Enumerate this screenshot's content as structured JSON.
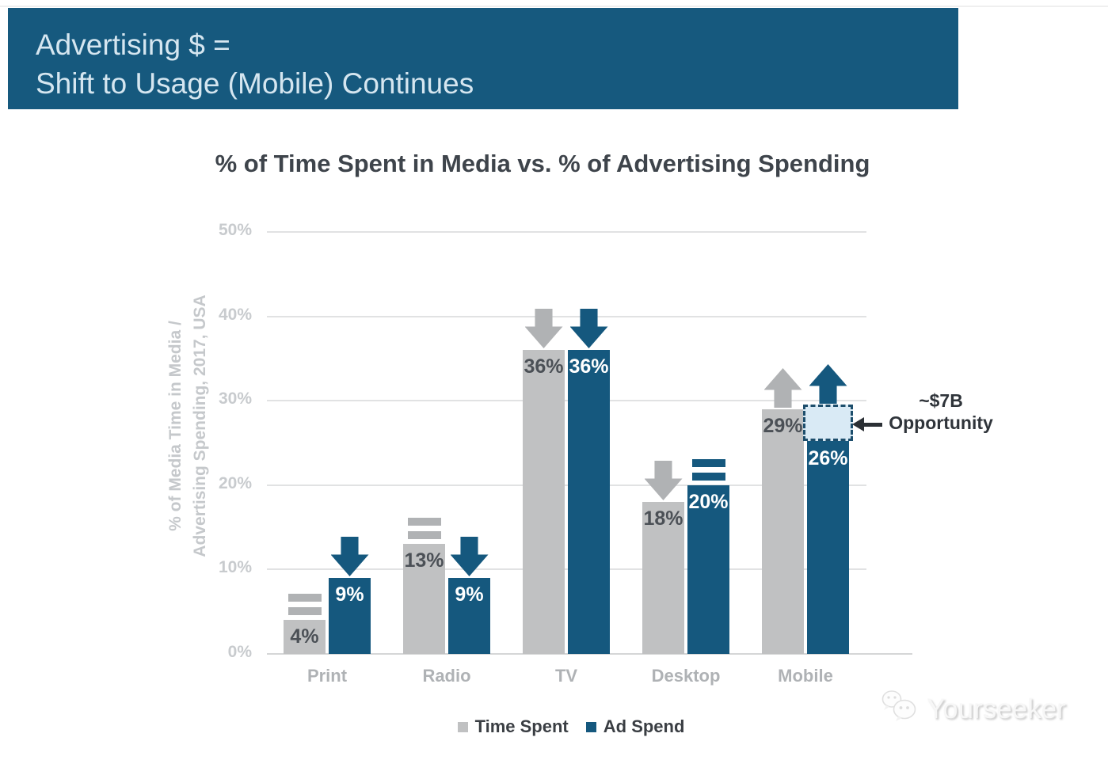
{
  "header": {
    "line1": "Advertising $ =",
    "line2": "Shift to Usage (Mobile) Continues"
  },
  "chart_data": {
    "type": "bar",
    "title": "% of Time Spent in Media vs. % of Advertising Spending",
    "ylabel_line1": "% of Media Time in Media /",
    "ylabel_line2": "Advertising Spending, 2017, USA",
    "categories": [
      "Print",
      "Radio",
      "TV",
      "Desktop",
      "Mobile"
    ],
    "series": [
      {
        "name": "Time Spent",
        "color": "#C0C1C2",
        "values": [
          4,
          13,
          36,
          18,
          29
        ],
        "indicators": [
          "equal",
          "equal",
          "down",
          "down",
          "up"
        ]
      },
      {
        "name": "Ad Spend",
        "color": "#15587E",
        "values": [
          9,
          9,
          36,
          20,
          26
        ],
        "indicators": [
          "down",
          "down",
          "down",
          "equal",
          "up"
        ]
      }
    ],
    "y_ticks": [
      "0%",
      "10%",
      "20%",
      "30%",
      "40%",
      "50%"
    ],
    "ylim": [
      0,
      50
    ],
    "grid": true,
    "legend_position": "bottom",
    "annotation": {
      "line1": "~$7B",
      "line2": "Opportunity",
      "target_category": "Mobile",
      "target_series": "Ad Spend",
      "box_from_pct": 26,
      "box_to_pct": 29.5,
      "box_fill": "#D9EAF5",
      "box_border": "#1D4E6C"
    }
  },
  "colors": {
    "primary_blue": "#15587E",
    "banner_blue": "#16597E",
    "bar_gray": "#C0C1C2",
    "indicator_gray": "#B0B2B4",
    "value_label_dark": "#4B5056",
    "value_label_light": "#FFFFFF"
  },
  "watermark": {
    "text": "Yourseeker"
  }
}
